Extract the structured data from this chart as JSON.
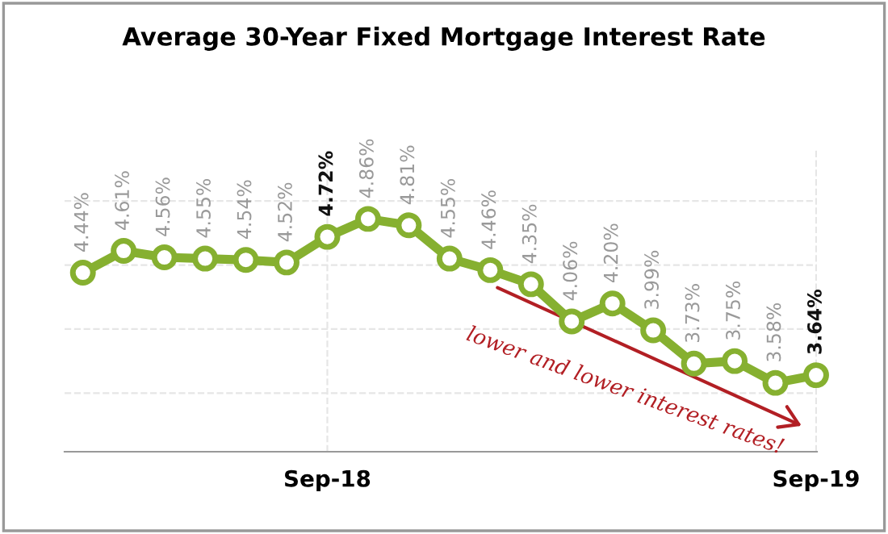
{
  "chart_data": {
    "type": "line",
    "title": "Average 30-Year Fixed Mortgage Interest Rate",
    "categories": [
      null,
      null,
      null,
      null,
      null,
      null,
      "Sep-18",
      null,
      null,
      null,
      null,
      null,
      null,
      null,
      null,
      null,
      null,
      null,
      "Sep-19"
    ],
    "series": [
      {
        "color": "#86b030",
        "values": [
          4.44,
          4.61,
          4.56,
          4.55,
          4.54,
          4.52,
          4.72,
          4.86,
          4.81,
          4.55,
          4.46,
          4.35,
          4.06,
          4.2,
          3.99,
          3.73,
          3.75,
          3.58,
          3.64
        ],
        "value_labels": [
          "4.44%",
          "4.61%",
          "4.56%",
          "4.55%",
          "4.54%",
          "4.52%",
          "4.72%",
          "4.86%",
          "4.81%",
          "4.55%",
          "4.46%",
          "4.35%",
          "4.06%",
          "4.20%",
          "3.99%",
          "3.73%",
          "3.75%",
          "3.58%",
          "3.64%"
        ]
      }
    ],
    "tick_labels": "x",
    "grid": true,
    "marker": "circle",
    "line_style": "solid",
    "annotations": [
      "lower and lower interest rates!"
    ]
  }
}
